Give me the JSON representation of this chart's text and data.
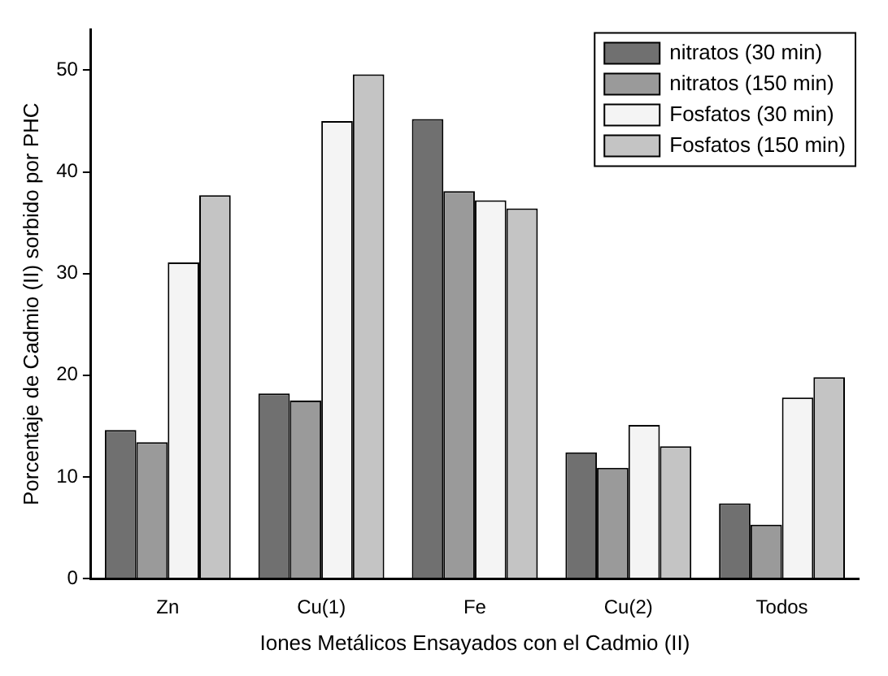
{
  "chart_data": {
    "type": "bar",
    "xlabel": "Iones Metálicos Ensayados con el Cadmio (II)",
    "ylabel": "Porcentaje de Cadmio (II) sorbido por PHC",
    "categories": [
      "Zn",
      "Cu(1)",
      "Fe",
      "Cu(2)",
      "Todos"
    ],
    "series": [
      {
        "name": "nitratos (30 min)",
        "color": "#707070",
        "values": [
          14.6,
          18.2,
          45.2,
          12.4,
          7.4
        ]
      },
      {
        "name": "nitratos (150 min)",
        "color": "#9a9a9a",
        "values": [
          13.4,
          17.5,
          38.1,
          10.9,
          5.3
        ]
      },
      {
        "name": "Fosfatos (30 min)",
        "color": "#f4f4f4",
        "values": [
          31.1,
          45,
          37.2,
          15.1,
          17.8
        ]
      },
      {
        "name": "Fosfatos (150 min)",
        "color": "#c4c4c4",
        "values": [
          37.7,
          49.6,
          36.4,
          13,
          19.8
        ]
      }
    ],
    "ylim": [
      0,
      54
    ],
    "yticks": [
      0,
      10,
      20,
      30,
      40,
      50
    ],
    "grid": false,
    "legend": "top right"
  }
}
